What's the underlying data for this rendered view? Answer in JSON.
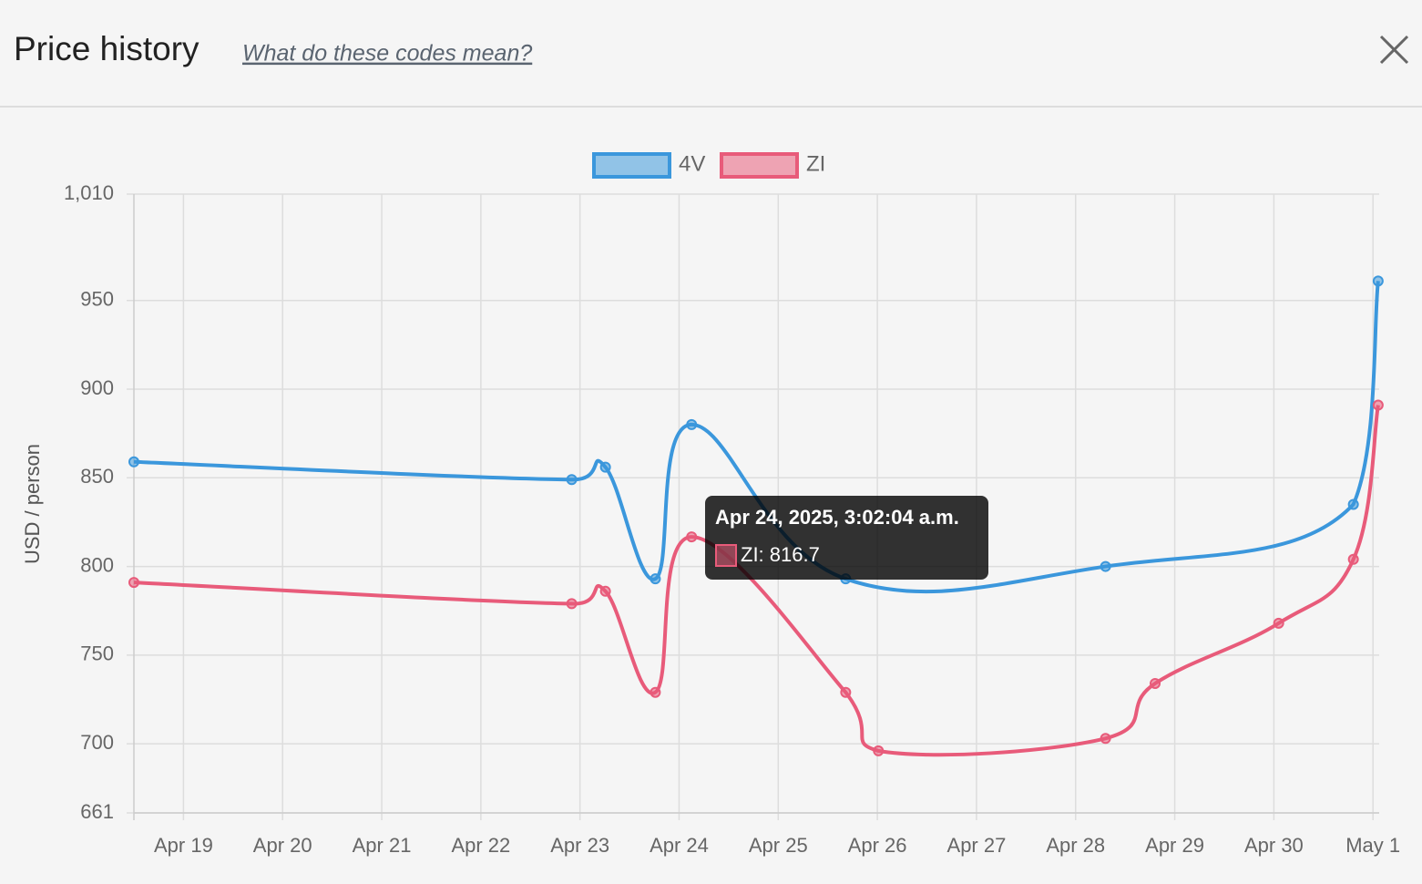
{
  "header": {
    "title": "Price history",
    "link": "What do these codes mean?"
  },
  "chart_data": {
    "type": "line",
    "y_label": "USD / person",
    "xlim": [
      "2025-04-18T12:00",
      "2025-05-01T01:30"
    ],
    "xticks": [
      {
        "value": "2025-04-19T00:00",
        "label": "Apr 19"
      },
      {
        "value": "2025-04-20T00:00",
        "label": "Apr 20"
      },
      {
        "value": "2025-04-21T00:00",
        "label": "Apr 21"
      },
      {
        "value": "2025-04-22T00:00",
        "label": "Apr 22"
      },
      {
        "value": "2025-04-23T00:00",
        "label": "Apr 23"
      },
      {
        "value": "2025-04-24T00:00",
        "label": "Apr 24"
      },
      {
        "value": "2025-04-25T00:00",
        "label": "Apr 25"
      },
      {
        "value": "2025-04-26T00:00",
        "label": "Apr 26"
      },
      {
        "value": "2025-04-27T00:00",
        "label": "Apr 27"
      },
      {
        "value": "2025-04-28T00:00",
        "label": "Apr 28"
      },
      {
        "value": "2025-04-29T00:00",
        "label": "Apr 29"
      },
      {
        "value": "2025-04-30T00:00",
        "label": "Apr 30"
      },
      {
        "value": "2025-05-01T00:00",
        "label": "May 1"
      }
    ],
    "ylim": [
      661,
      1010
    ],
    "yticks": [
      661,
      700,
      750,
      800,
      850,
      900,
      950,
      {
        "value": 1010,
        "label": "1,010"
      }
    ],
    "grid": true,
    "legend": "top",
    "series": [
      {
        "name": "4V",
        "color": "#3b97dc",
        "x": [
          "2025-04-18T12:00",
          "2025-04-22T22:00",
          "2025-04-23T06:10",
          "2025-04-23T18:15",
          "2025-04-24T03:02",
          "2025-04-25T16:20",
          "2025-04-28T07:15",
          "2025-04-30T19:15",
          "2025-05-01T01:15"
        ],
        "values": [
          859,
          849,
          856,
          793,
          880,
          793,
          800,
          835,
          961
        ]
      },
      {
        "name": "ZI",
        "color": "#e85b7a",
        "x": [
          "2025-04-18T12:00",
          "2025-04-22T22:00",
          "2025-04-23T06:10",
          "2025-04-23T18:15",
          "2025-04-24T03:02",
          "2025-04-25T16:20",
          "2025-04-26T00:15",
          "2025-04-28T07:15",
          "2025-04-28T19:15",
          "2025-04-30T01:10",
          "2025-04-30T19:15",
          "2025-05-01T01:15"
        ],
        "values": [
          791,
          779,
          786,
          729,
          816.7,
          729,
          696,
          703,
          734,
          768,
          804,
          891
        ]
      }
    ],
    "tooltip": {
      "title": "Apr 24, 2025, 3:02:04 a.m.",
      "label": "ZI: 816.7"
    }
  }
}
